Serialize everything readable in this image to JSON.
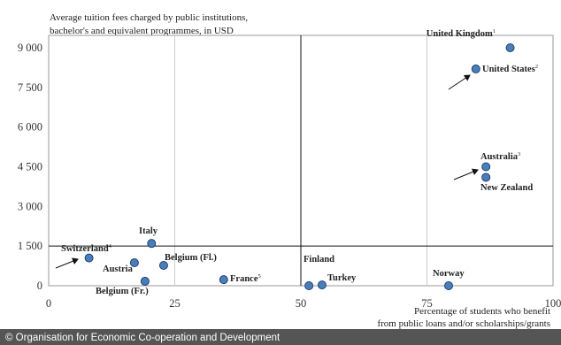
{
  "chart_data": {
    "type": "scatter",
    "title_lines": [
      "Average tuition fees charged by public institutions,",
      "bachelor's and equivalent programmes, in USD"
    ],
    "x_label_lines": [
      "Percentage of students who benefit",
      "from public loans and/or scholarships/grants"
    ],
    "color": "#4a7ebb",
    "points": [
      {
        "label": "United Kingdom",
        "note": "1",
        "x": 91.5,
        "y": 9000
      },
      {
        "label": "United States",
        "note": "2",
        "x": 84.7,
        "y": 8200
      },
      {
        "label": "Australia",
        "note": "3",
        "x": 86.7,
        "y": 4500
      },
      {
        "label": "New Zealand",
        "x": 86.7,
        "y": 4100
      },
      {
        "label": "Switzerland",
        "note": "4",
        "x": 8,
        "y": 1050
      },
      {
        "label": "Italy",
        "x": 20.4,
        "y": 1600
      },
      {
        "label": "Austria",
        "x": 17,
        "y": 870
      },
      {
        "label": "Belgium (Fl.)",
        "x": 22.8,
        "y": 770
      },
      {
        "label": "Belgium (Fr.)",
        "x": 19.1,
        "y": 170
      },
      {
        "label": "France",
        "note": "5",
        "x": 34.7,
        "y": 230
      },
      {
        "label": "Finland",
        "x": 51.6,
        "y": 0
      },
      {
        "label": "Turkey",
        "x": 54.2,
        "y": 30
      },
      {
        "label": "Norway",
        "x": 79.3,
        "y": 0
      }
    ],
    "xlim": [
      0,
      100
    ],
    "xticks": [
      0,
      25,
      50,
      75,
      100
    ],
    "ylim": [
      0,
      9000
    ],
    "yticks": [
      0,
      {
        "value": 1500,
        "label": "1 500"
      },
      {
        "value": 3000,
        "label": "3 000"
      },
      {
        "value": 4500,
        "label": "4 500"
      },
      {
        "value": 6000,
        "label": "6 000"
      },
      {
        "value": 7500,
        "label": "7 500"
      },
      {
        "value": 9000,
        "label": "9 000"
      }
    ],
    "x_reference": 50,
    "y_reference": 1500,
    "footer": "© Organisation for Economic Co-operation and Development"
  }
}
